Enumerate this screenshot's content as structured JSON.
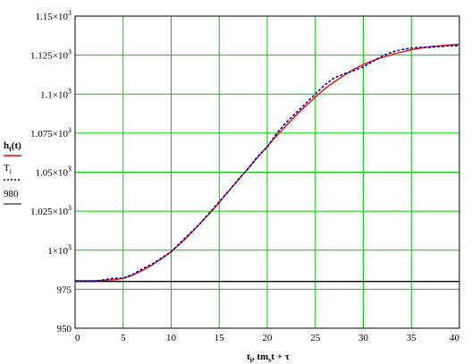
{
  "chart_data": {
    "type": "line",
    "x_axis": {
      "label_main": "t",
      "label_sub": "i",
      "label_rest": ", tm",
      "label_sub2": "s",
      "label_tail": "t + τ",
      "range": [
        0,
        40
      ],
      "ticks": [
        0,
        5,
        10,
        15,
        20,
        25,
        30,
        35,
        40
      ],
      "tick_labels": [
        "0",
        "5",
        "10",
        "15",
        "20",
        "25",
        "30",
        "35",
        "40"
      ]
    },
    "y_axis": {
      "range": [
        950,
        1150
      ],
      "ticks": [
        950,
        975,
        1000,
        1025,
        1050,
        1075,
        1100,
        1125,
        1150
      ],
      "tick_labels": [
        {
          "base": "950",
          "exp": ""
        },
        {
          "base": "975",
          "exp": ""
        },
        {
          "base": "1×10",
          "exp": "3"
        },
        {
          "base": "1.025×10",
          "exp": "3"
        },
        {
          "base": "1.05×10",
          "exp": "3"
        },
        {
          "base": "1.075×10",
          "exp": "3"
        },
        {
          "base": "1.1×10",
          "exp": "3"
        },
        {
          "base": "1.125×10",
          "exp": "3"
        },
        {
          "base": "1.15×10",
          "exp": "3"
        }
      ]
    },
    "grid": true,
    "grid_color": "#00cc00",
    "legend_placement": "left",
    "series": [
      {
        "name": "h",
        "name_sub": "t",
        "name_tail": "(t)",
        "color": "#ff0000",
        "style": "solid",
        "x": [
          0,
          2,
          4,
          5,
          6,
          7,
          8,
          9,
          10,
          11,
          12,
          13,
          14,
          15,
          16,
          17,
          18,
          19,
          20,
          21,
          22,
          23,
          24,
          25,
          26,
          27,
          28,
          29,
          30,
          31,
          32,
          33,
          34,
          35,
          36,
          37,
          38,
          39,
          40
        ],
        "y": [
          980.5,
          980.5,
          981,
          982,
          984,
          987,
          990.5,
          994.5,
          999,
          1004.5,
          1010.5,
          1017,
          1023.5,
          1030.5,
          1038,
          1045,
          1052.5,
          1059.5,
          1066.5,
          1073.5,
          1080,
          1086.5,
          1092.5,
          1098,
          1103.5,
          1108,
          1112,
          1116,
          1119,
          1121.5,
          1123.5,
          1125.5,
          1127,
          1128.5,
          1129.5,
          1130.5,
          1131,
          1131.5,
          1132
        ]
      },
      {
        "name": "T",
        "name_sub": "i",
        "name_tail": "",
        "color": "#0000aa",
        "style": "dotted",
        "x": [
          0,
          2,
          3,
          4,
          5,
          6,
          7,
          8,
          9,
          10,
          11,
          12,
          13,
          14,
          15,
          16,
          17,
          18,
          19,
          20,
          21,
          22,
          23,
          24,
          25,
          26,
          27,
          28,
          29,
          30,
          31,
          32,
          33,
          34,
          35,
          36,
          37,
          38,
          39,
          40
        ],
        "y": [
          980,
          980,
          981,
          982,
          982,
          984.5,
          988,
          991,
          995,
          999,
          1005,
          1011,
          1017,
          1024,
          1031,
          1038,
          1045.5,
          1052,
          1060,
          1066,
          1075,
          1082,
          1088,
          1094,
          1100,
          1106,
          1110.5,
          1113,
          1115,
          1117.5,
          1121,
          1124.5,
          1127,
          1128.5,
          1129.5,
          1130,
          1130,
          1130.5,
          1131,
          1131
        ]
      },
      {
        "name": "980",
        "name_sub": "",
        "name_tail": "",
        "color": "#000000",
        "style": "solid",
        "x": [
          0,
          40
        ],
        "y": [
          980,
          980
        ]
      }
    ]
  }
}
